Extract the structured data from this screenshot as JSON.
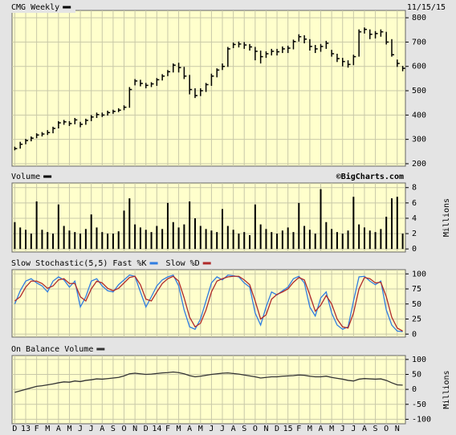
{
  "chart_data": [
    {
      "type": "ohlc",
      "title": "CMG Weekly",
      "date": "11/15/15",
      "color": "#000000",
      "high": [
        270,
        290,
        302,
        312,
        325,
        330,
        338,
        352,
        375,
        380,
        375,
        388,
        372,
        385,
        400,
        410,
        410,
        418,
        422,
        428,
        440,
        515,
        548,
        545,
        532,
        535,
        552,
        568,
        585,
        612,
        615,
        598,
        565,
        510,
        510,
        532,
        570,
        592,
        612,
        680,
        698,
        702,
        700,
        692,
        680,
        665,
        662,
        672,
        672,
        682,
        685,
        710,
        732,
        728,
        712,
        688,
        692,
        705,
        668,
        652,
        635,
        625,
        648,
        752,
        760,
        752,
        745,
        752,
        742,
        712,
        628,
        602
      ],
      "low": [
        255,
        262,
        280,
        292,
        305,
        312,
        318,
        325,
        345,
        360,
        355,
        362,
        350,
        360,
        375,
        388,
        392,
        398,
        405,
        412,
        420,
        430,
        522,
        518,
        510,
        515,
        520,
        542,
        560,
        575,
        575,
        548,
        485,
        470,
        478,
        495,
        520,
        555,
        585,
        598,
        675,
        678,
        672,
        665,
        625,
        612,
        635,
        645,
        645,
        655,
        655,
        670,
        702,
        695,
        665,
        655,
        660,
        672,
        640,
        618,
        600,
        595,
        605,
        640,
        735,
        712,
        715,
        722,
        690,
        640,
        598,
        580
      ],
      "close": [
        262,
        280,
        295,
        305,
        318,
        322,
        328,
        345,
        368,
        372,
        365,
        380,
        362,
        378,
        392,
        402,
        400,
        410,
        415,
        420,
        432,
        505,
        540,
        530,
        522,
        528,
        545,
        560,
        578,
        605,
        595,
        560,
        505,
        480,
        500,
        525,
        560,
        585,
        600,
        672,
        690,
        692,
        688,
        680,
        662,
        640,
        652,
        662,
        660,
        672,
        675,
        702,
        722,
        712,
        682,
        672,
        682,
        695,
        652,
        632,
        620,
        608,
        640,
        742,
        752,
        732,
        735,
        742,
        700,
        648,
        612,
        592
      ],
      "ylim": [
        190,
        830
      ],
      "yticks": [
        200,
        300,
        400,
        500,
        600,
        700,
        800
      ],
      "grid": true
    },
    {
      "type": "bar",
      "title": "Volume",
      "credit": "©BigCharts.com",
      "y_label": "Millions",
      "color": "#000000",
      "values": [
        3.5,
        2.8,
        2.5,
        2.0,
        6.2,
        2.5,
        2.2,
        2.0,
        5.8,
        3.0,
        2.4,
        2.2,
        2.0,
        2.6,
        4.5,
        2.8,
        2.2,
        2.0,
        2.0,
        2.3,
        5.0,
        6.6,
        3.2,
        2.8,
        2.5,
        2.2,
        3.0,
        2.6,
        6.0,
        3.5,
        2.8,
        3.2,
        6.2,
        4.0,
        3.0,
        2.6,
        2.4,
        2.2,
        5.2,
        3.0,
        2.5,
        2.0,
        2.2,
        1.8,
        5.8,
        3.2,
        2.6,
        2.2,
        2.0,
        2.4,
        2.8,
        2.2,
        6.0,
        3.0,
        2.5,
        2.0,
        7.8,
        3.5,
        2.6,
        2.2,
        2.0,
        2.4,
        6.8,
        3.2,
        2.8,
        2.4,
        2.2,
        2.6,
        4.2,
        6.6,
        6.8,
        2.0
      ],
      "ylim": [
        -0.4,
        8.6
      ],
      "yticks": [
        0,
        2,
        4,
        6,
        8
      ],
      "grid": true
    },
    {
      "type": "line",
      "title": "Slow Stochastic(5,5)",
      "series": [
        {
          "name": "Fast %K",
          "color": "#2f7de1",
          "values": [
            50,
            72,
            88,
            92,
            85,
            80,
            70,
            88,
            95,
            90,
            78,
            88,
            45,
            62,
            88,
            92,
            80,
            72,
            70,
            82,
            90,
            98,
            96,
            70,
            45,
            62,
            80,
            90,
            95,
            98,
            80,
            40,
            12,
            8,
            25,
            55,
            85,
            95,
            90,
            98,
            97,
            95,
            85,
            78,
            35,
            15,
            45,
            70,
            65,
            72,
            78,
            92,
            96,
            85,
            45,
            30,
            60,
            70,
            35,
            15,
            8,
            12,
            55,
            95,
            96,
            88,
            82,
            88,
            40,
            15,
            5,
            4
          ]
        },
        {
          "name": "Slow %D",
          "color": "#b02a2a",
          "values": [
            55,
            62,
            78,
            88,
            88,
            84,
            76,
            80,
            90,
            92,
            84,
            84,
            62,
            55,
            75,
            88,
            85,
            76,
            72,
            76,
            85,
            94,
            96,
            82,
            58,
            55,
            70,
            84,
            92,
            96,
            88,
            60,
            28,
            12,
            18,
            40,
            70,
            88,
            92,
            95,
            96,
            96,
            90,
            82,
            55,
            25,
            32,
            58,
            66,
            70,
            75,
            86,
            94,
            90,
            65,
            38,
            48,
            64,
            50,
            25,
            12,
            10,
            35,
            75,
            94,
            92,
            85,
            86,
            62,
            28,
            10,
            5
          ]
        }
      ],
      "ylim": [
        -5,
        107
      ],
      "yticks": [
        0,
        25,
        50,
        75,
        100
      ],
      "grid": true
    },
    {
      "type": "line",
      "title": "On Balance Volume",
      "y_label": "Millions",
      "color": "#333333",
      "categories": [
        "D",
        null,
        "13",
        null,
        "F",
        null,
        "M",
        null,
        "A",
        null,
        "M",
        null,
        "J",
        null,
        "J",
        null,
        "A",
        null,
        "S",
        null,
        "O",
        null,
        "N",
        null,
        "D",
        null,
        "14",
        null,
        "F",
        null,
        "M",
        null,
        "A",
        null,
        "M",
        null,
        "J",
        null,
        "J",
        null,
        "A",
        null,
        "S",
        null,
        "O",
        null,
        "N",
        null,
        "D",
        null,
        "15",
        null,
        "F",
        null,
        "M",
        null,
        "A",
        null,
        "M",
        null,
        "J",
        null,
        "J",
        null,
        "A",
        null,
        "S",
        null,
        "O",
        null,
        "N",
        null
      ],
      "values": [
        -10,
        -5,
        0,
        5,
        10,
        12,
        15,
        18,
        22,
        25,
        24,
        28,
        26,
        30,
        32,
        35,
        34,
        36,
        38,
        40,
        45,
        52,
        54,
        52,
        50,
        51,
        53,
        55,
        56,
        58,
        56,
        52,
        46,
        42,
        44,
        47,
        50,
        52,
        54,
        55,
        53,
        51,
        48,
        45,
        42,
        38,
        40,
        42,
        42,
        44,
        45,
        46,
        48,
        47,
        44,
        42,
        42,
        44,
        40,
        37,
        34,
        30,
        28,
        34,
        36,
        35,
        34,
        35,
        30,
        22,
        15,
        14
      ],
      "ylim": [
        -115,
        113
      ],
      "yticks": [
        -100,
        -50,
        0,
        50,
        100
      ],
      "grid": true
    }
  ]
}
